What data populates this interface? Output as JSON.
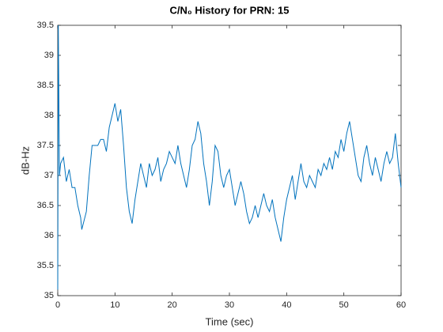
{
  "chart_data": {
    "type": "line",
    "title": "C/N₀ History for PRN: 15",
    "xlabel": "Time (sec)",
    "ylabel": "dB-Hz",
    "x": [
      0,
      0.1,
      0.3,
      0.5,
      1,
      1.5,
      2,
      2.5,
      3,
      3.5,
      4,
      4.2,
      5,
      5.5,
      6,
      6.5,
      7,
      7.5,
      8,
      8.5,
      9,
      9.5,
      10,
      10.5,
      11,
      11.5,
      12,
      12.5,
      13,
      13.5,
      14,
      14.5,
      15,
      15.5,
      16,
      16.5,
      17,
      17.5,
      18,
      18.5,
      19,
      19.5,
      20,
      20.5,
      21,
      21.5,
      22,
      22.5,
      23,
      23.5,
      24,
      24.5,
      25,
      25.5,
      26,
      26.5,
      27,
      27.5,
      28,
      28.5,
      29,
      29.5,
      30,
      30.5,
      31,
      31.5,
      32,
      32.5,
      33,
      33.5,
      34,
      34.5,
      35,
      35.5,
      36,
      36.5,
      37,
      37.5,
      38,
      38.5,
      39,
      39.5,
      40,
      40.5,
      41,
      41.5,
      42,
      42.5,
      43,
      43.5,
      44,
      44.5,
      45,
      45.5,
      46,
      46.5,
      47,
      47.5,
      48,
      48.5,
      49,
      49.5,
      50,
      50.5,
      51,
      51.5,
      52,
      52.5,
      53,
      53.5,
      54,
      54.5,
      55,
      55.5,
      56,
      56.5,
      57,
      57.5,
      58,
      58.5,
      59,
      59.5,
      60
    ],
    "series": [
      {
        "name": "C/N0",
        "color": "#0072bd",
        "values": [
          35.1,
          39.5,
          37.0,
          37.2,
          37.3,
          36.9,
          37.1,
          36.8,
          36.8,
          36.5,
          36.3,
          36.1,
          36.4,
          37.0,
          37.5,
          37.5,
          37.5,
          37.6,
          37.6,
          37.4,
          37.8,
          38.0,
          38.2,
          37.9,
          38.1,
          37.5,
          36.8,
          36.4,
          36.2,
          36.6,
          36.9,
          37.2,
          37.0,
          36.8,
          37.2,
          37.0,
          37.1,
          37.3,
          36.9,
          37.1,
          37.2,
          37.4,
          37.3,
          37.2,
          37.5,
          37.2,
          37.0,
          36.8,
          37.1,
          37.5,
          37.6,
          37.9,
          37.7,
          37.2,
          36.9,
          36.5,
          36.9,
          37.5,
          37.4,
          37.0,
          36.8,
          37.0,
          37.1,
          36.8,
          36.5,
          36.7,
          36.9,
          36.7,
          36.4,
          36.2,
          36.3,
          36.5,
          36.3,
          36.5,
          36.7,
          36.5,
          36.4,
          36.6,
          36.3,
          36.1,
          35.9,
          36.3,
          36.6,
          36.8,
          37.0,
          36.6,
          36.9,
          37.2,
          36.9,
          36.8,
          37.0,
          36.9,
          36.8,
          37.1,
          37.0,
          37.2,
          37.1,
          37.3,
          37.1,
          37.4,
          37.3,
          37.6,
          37.4,
          37.7,
          37.9,
          37.6,
          37.3,
          37.0,
          36.9,
          37.3,
          37.5,
          37.2,
          37.0,
          37.3,
          37.1,
          36.9,
          37.2,
          37.4,
          37.2,
          37.3,
          37.7,
          37.2,
          36.8
        ]
      }
    ],
    "xlim": [
      0,
      60
    ],
    "xticks": [
      0,
      10,
      20,
      30,
      40,
      50,
      60
    ],
    "ylim": [
      35,
      39.5
    ],
    "yticks": [
      35,
      35.5,
      36,
      36.5,
      37,
      37.5,
      38,
      38.5,
      39,
      39.5
    ]
  }
}
